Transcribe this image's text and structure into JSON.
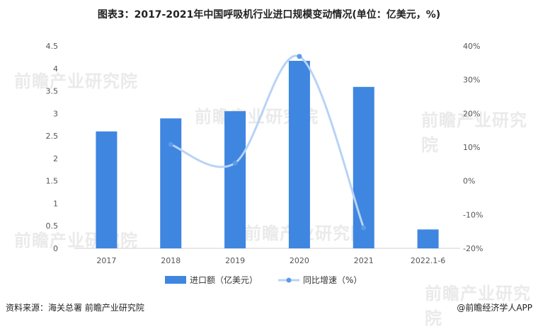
{
  "title": "图表3：2017-2021年中国呼吸机行业进口规模变动情况(单位：亿美元，%)",
  "source": "资料来源：海关总署 前瞻产业研究院",
  "brand": "@前瞻经济学人APP",
  "watermark": "前瞻产业研究院",
  "colors": {
    "bar": "#3f86e0",
    "line": "#b7d3f5",
    "point": "#5b9be6",
    "axis": "#cfcfcf",
    "text": "#555555"
  },
  "chart_data": {
    "type": "bar",
    "categories": [
      "2017",
      "2018",
      "2019",
      "2020",
      "2021",
      "2022.1-6"
    ],
    "series": [
      {
        "name": "进口额（亿美元）",
        "type": "bar",
        "axis": "left",
        "values": [
          2.6,
          2.89,
          3.05,
          4.17,
          3.59,
          0.42
        ]
      },
      {
        "name": "同比增速（%）",
        "type": "line",
        "axis": "right",
        "values": [
          null,
          10.8,
          5.3,
          36.9,
          -13.9,
          null
        ]
      }
    ],
    "ylim_left": [
      0,
      4.5
    ],
    "yticks_left": [
      "0",
      "0.5",
      "1",
      "1.5",
      "2",
      "2.5",
      "3",
      "3.5",
      "4",
      "4.5"
    ],
    "ylim_right": [
      -20,
      40
    ],
    "yticks_right": [
      "-20%",
      "-10%",
      "0%",
      "10%",
      "20%",
      "30%",
      "40%"
    ],
    "legend_position": "bottom",
    "grid": false
  }
}
